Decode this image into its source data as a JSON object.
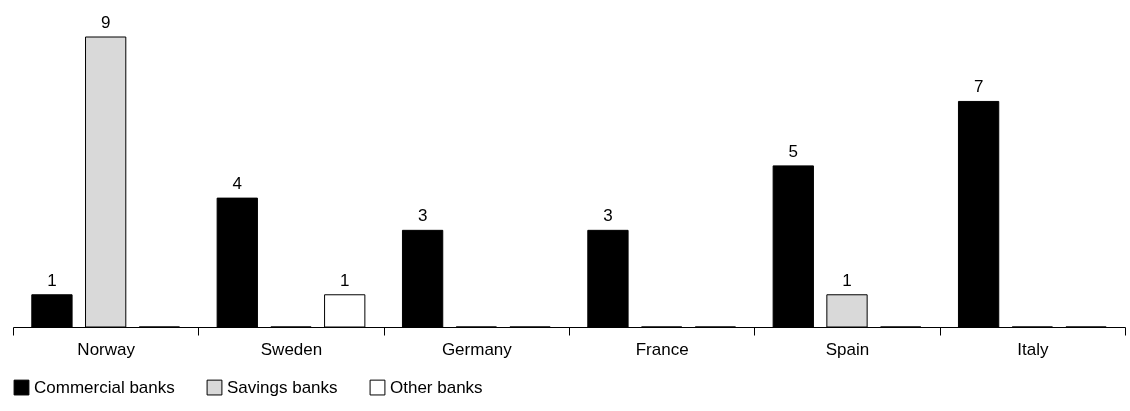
{
  "chart_data": {
    "type": "bar",
    "categories": [
      "Norway",
      "Sweden",
      "Germany",
      "France",
      "Spain",
      "Italy"
    ],
    "series": [
      {
        "name": "Commercial banks",
        "color": "#000000",
        "values": [
          1,
          4,
          3,
          3,
          5,
          7
        ],
        "value_labels": [
          "1",
          "4",
          "3",
          "3",
          "5",
          "7"
        ]
      },
      {
        "name": "Savings banks",
        "color": "#d9d9d9",
        "values": [
          9,
          0,
          0,
          0,
          1,
          0
        ],
        "value_labels": [
          "9",
          null,
          null,
          null,
          "1",
          null
        ]
      },
      {
        "name": "Other banks",
        "color": "#ffffff",
        "values": [
          0,
          1,
          0,
          0,
          0,
          0
        ],
        "value_labels": [
          null,
          "1",
          null,
          null,
          null,
          null
        ]
      }
    ],
    "legend": "bottom"
  }
}
